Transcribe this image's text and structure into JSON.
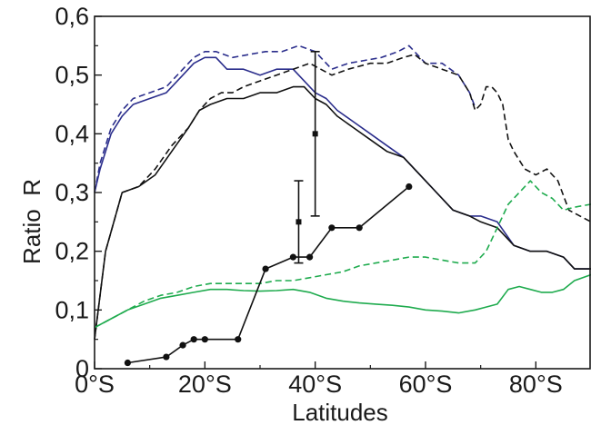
{
  "chart_data": {
    "type": "line",
    "title": "",
    "xlabel": "Latitudes",
    "ylabel": "Ratio  R",
    "xlim": [
      0,
      90
    ],
    "ylim": [
      0,
      0.6
    ],
    "x_ticks": [
      0,
      20,
      40,
      60,
      80
    ],
    "x_tick_labels": [
      "0°S",
      "20°S",
      "40°S",
      "60°S",
      "80°S"
    ],
    "y_ticks": [
      0,
      0.1,
      0.2,
      0.3,
      0.4,
      0.5,
      0.6
    ],
    "y_tick_labels": [
      "0",
      "0,1",
      "0,2",
      "0,3",
      "0,4",
      "0,5",
      "0,6"
    ],
    "grid": false,
    "legend": "none",
    "series": [
      {
        "color": "#2b2e8c",
        "style": "dashed",
        "x": [
          0,
          1,
          3,
          5,
          7,
          10,
          13,
          16,
          18,
          20,
          22,
          25,
          28,
          31,
          34,
          37,
          40,
          43,
          46,
          49,
          52,
          55,
          57,
          60,
          63,
          66,
          68,
          69
        ],
        "y": [
          0.3,
          0.35,
          0.41,
          0.44,
          0.46,
          0.47,
          0.48,
          0.51,
          0.53,
          0.54,
          0.54,
          0.53,
          0.535,
          0.54,
          0.54,
          0.55,
          0.54,
          0.51,
          0.52,
          0.525,
          0.53,
          0.54,
          0.55,
          0.52,
          0.52,
          0.5,
          0.47,
          0.445
        ]
      },
      {
        "color": "#2b2e8c",
        "style": "solid",
        "x": [
          0,
          1,
          3,
          5,
          7,
          10,
          13,
          16,
          18,
          20,
          22,
          24,
          27,
          30,
          33,
          36,
          38,
          40,
          42,
          44,
          47,
          50,
          53,
          56,
          59,
          62,
          65,
          68,
          70,
          73,
          76,
          79,
          82,
          85,
          87,
          90
        ],
        "y": [
          0.3,
          0.34,
          0.4,
          0.43,
          0.45,
          0.46,
          0.47,
          0.5,
          0.52,
          0.53,
          0.53,
          0.51,
          0.51,
          0.5,
          0.51,
          0.51,
          0.49,
          0.47,
          0.46,
          0.44,
          0.42,
          0.4,
          0.38,
          0.36,
          0.33,
          0.3,
          0.27,
          0.26,
          0.26,
          0.25,
          0.21,
          0.2,
          0.2,
          0.19,
          0.17,
          0.17
        ]
      },
      {
        "color": "#111111",
        "style": "dashed",
        "x": [
          0,
          2,
          5,
          8,
          11,
          14,
          17,
          19,
          21,
          23,
          25,
          27,
          30,
          33,
          36,
          39,
          41,
          43,
          46,
          50,
          53,
          56,
          58,
          60,
          63,
          66,
          68,
          69,
          70,
          71,
          72,
          73,
          74,
          75,
          76,
          78,
          80,
          82,
          84,
          86,
          88,
          90
        ],
        "y": [
          0.05,
          0.2,
          0.3,
          0.31,
          0.34,
          0.38,
          0.41,
          0.44,
          0.46,
          0.47,
          0.47,
          0.48,
          0.49,
          0.5,
          0.51,
          0.52,
          0.51,
          0.5,
          0.51,
          0.52,
          0.52,
          0.53,
          0.535,
          0.52,
          0.51,
          0.5,
          0.47,
          0.44,
          0.45,
          0.48,
          0.48,
          0.47,
          0.45,
          0.39,
          0.37,
          0.34,
          0.33,
          0.34,
          0.32,
          0.27,
          0.26,
          0.25
        ]
      },
      {
        "color": "#111111",
        "style": "solid",
        "x": [
          0,
          2,
          5,
          8,
          11,
          14,
          17,
          19,
          21,
          24,
          27,
          30,
          33,
          36,
          38,
          40,
          42,
          44,
          47,
          50,
          53,
          56,
          59,
          62,
          65,
          68,
          70,
          73,
          76,
          79,
          82,
          85,
          87,
          90
        ],
        "y": [
          0.05,
          0.2,
          0.3,
          0.31,
          0.33,
          0.37,
          0.41,
          0.44,
          0.45,
          0.46,
          0.46,
          0.47,
          0.47,
          0.48,
          0.48,
          0.46,
          0.45,
          0.43,
          0.41,
          0.39,
          0.37,
          0.36,
          0.33,
          0.3,
          0.27,
          0.26,
          0.25,
          0.24,
          0.21,
          0.2,
          0.2,
          0.19,
          0.17,
          0.17
        ]
      },
      {
        "color": "#1fab4e",
        "style": "dashed",
        "x": [
          0,
          3,
          6,
          9,
          12,
          15,
          18,
          21,
          24,
          27,
          30,
          33,
          36,
          39,
          42,
          45,
          48,
          51,
          54,
          57,
          60,
          63,
          66,
          69,
          71,
          73,
          75,
          77,
          79,
          81,
          83,
          85,
          87,
          90
        ],
        "y": [
          0.07,
          0.085,
          0.1,
          0.115,
          0.125,
          0.13,
          0.14,
          0.145,
          0.145,
          0.145,
          0.145,
          0.15,
          0.15,
          0.155,
          0.16,
          0.165,
          0.175,
          0.18,
          0.185,
          0.19,
          0.19,
          0.185,
          0.18,
          0.18,
          0.2,
          0.24,
          0.28,
          0.3,
          0.32,
          0.3,
          0.29,
          0.27,
          0.275,
          0.28
        ]
      },
      {
        "color": "#1fab4e",
        "style": "solid",
        "x": [
          0,
          3,
          6,
          9,
          12,
          15,
          18,
          21,
          24,
          27,
          30,
          33,
          36,
          39,
          42,
          45,
          48,
          51,
          54,
          57,
          60,
          63,
          66,
          69,
          71,
          73,
          75,
          77,
          79,
          81,
          83,
          85,
          87,
          90
        ],
        "y": [
          0.07,
          0.085,
          0.1,
          0.11,
          0.12,
          0.125,
          0.13,
          0.135,
          0.135,
          0.133,
          0.132,
          0.133,
          0.135,
          0.13,
          0.12,
          0.115,
          0.112,
          0.11,
          0.108,
          0.105,
          0.1,
          0.098,
          0.095,
          0.1,
          0.105,
          0.11,
          0.135,
          0.14,
          0.135,
          0.13,
          0.13,
          0.135,
          0.15,
          0.16
        ]
      },
      {
        "color": "#111111",
        "style": "solid-markers",
        "x": [
          6,
          13,
          16,
          18,
          20,
          26,
          31,
          36,
          39,
          43,
          48,
          57
        ],
        "y": [
          0.01,
          0.02,
          0.04,
          0.05,
          0.05,
          0.05,
          0.17,
          0.19,
          0.19,
          0.24,
          0.24,
          0.31
        ]
      }
    ],
    "error_bars": [
      {
        "x": 37,
        "y": 0.25,
        "low": 0.18,
        "high": 0.32
      },
      {
        "x": 40,
        "y": 0.4,
        "low": 0.26,
        "high": 0.54
      }
    ]
  }
}
